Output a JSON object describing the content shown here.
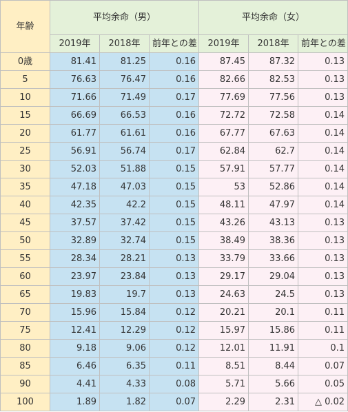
{
  "headers": {
    "age": "年齢",
    "male_group": "平均余命（男）",
    "female_group": "平均余命（女）",
    "col_2019": "2019年",
    "col_2018": "2018年",
    "col_diff": "前年との差"
  },
  "rows": [
    {
      "age": "0歳",
      "m2019": "81.41",
      "m2018": "81.25",
      "mdiff": "0.16",
      "f2019": "87.45",
      "f2018": "87.32",
      "fdiff": "0.13"
    },
    {
      "age": "5",
      "m2019": "76.63",
      "m2018": "76.47",
      "mdiff": "0.16",
      "f2019": "82.66",
      "f2018": "82.53",
      "fdiff": "0.13"
    },
    {
      "age": "10",
      "m2019": "71.66",
      "m2018": "71.49",
      "mdiff": "0.17",
      "f2019": "77.69",
      "f2018": "77.56",
      "fdiff": "0.13"
    },
    {
      "age": "15",
      "m2019": "66.69",
      "m2018": "66.53",
      "mdiff": "0.16",
      "f2019": "72.72",
      "f2018": "72.58",
      "fdiff": "0.14"
    },
    {
      "age": "20",
      "m2019": "61.77",
      "m2018": "61.61",
      "mdiff": "0.16",
      "f2019": "67.77",
      "f2018": "67.63",
      "fdiff": "0.14"
    },
    {
      "age": "25",
      "m2019": "56.91",
      "m2018": "56.74",
      "mdiff": "0.17",
      "f2019": "62.84",
      "f2018": "62.7",
      "fdiff": "0.14"
    },
    {
      "age": "30",
      "m2019": "52.03",
      "m2018": "51.88",
      "mdiff": "0.15",
      "f2019": "57.91",
      "f2018": "57.77",
      "fdiff": "0.14"
    },
    {
      "age": "35",
      "m2019": "47.18",
      "m2018": "47.03",
      "mdiff": "0.15",
      "f2019": "53",
      "f2018": "52.86",
      "fdiff": "0.14"
    },
    {
      "age": "40",
      "m2019": "42.35",
      "m2018": "42.2",
      "mdiff": "0.15",
      "f2019": "48.11",
      "f2018": "47.97",
      "fdiff": "0.14"
    },
    {
      "age": "45",
      "m2019": "37.57",
      "m2018": "37.42",
      "mdiff": "0.15",
      "f2019": "43.26",
      "f2018": "43.13",
      "fdiff": "0.13"
    },
    {
      "age": "50",
      "m2019": "32.89",
      "m2018": "32.74",
      "mdiff": "0.15",
      "f2019": "38.49",
      "f2018": "38.36",
      "fdiff": "0.13"
    },
    {
      "age": "55",
      "m2019": "28.34",
      "m2018": "28.21",
      "mdiff": "0.13",
      "f2019": "33.79",
      "f2018": "33.66",
      "fdiff": "0.13"
    },
    {
      "age": "60",
      "m2019": "23.97",
      "m2018": "23.84",
      "mdiff": "0.13",
      "f2019": "29.17",
      "f2018": "29.04",
      "fdiff": "0.13"
    },
    {
      "age": "65",
      "m2019": "19.83",
      "m2018": "19.7",
      "mdiff": "0.13",
      "f2019": "24.63",
      "f2018": "24.5",
      "fdiff": "0.13"
    },
    {
      "age": "70",
      "m2019": "15.96",
      "m2018": "15.84",
      "mdiff": "0.12",
      "f2019": "20.21",
      "f2018": "20.1",
      "fdiff": "0.11"
    },
    {
      "age": "75",
      "m2019": "12.41",
      "m2018": "12.29",
      "mdiff": "0.12",
      "f2019": "15.97",
      "f2018": "15.86",
      "fdiff": "0.11"
    },
    {
      "age": "80",
      "m2019": "9.18",
      "m2018": "9.06",
      "mdiff": "0.12",
      "f2019": "12.01",
      "f2018": "11.91",
      "fdiff": "0.1"
    },
    {
      "age": "85",
      "m2019": "6.46",
      "m2018": "6.35",
      "mdiff": "0.11",
      "f2019": "8.51",
      "f2018": "8.44",
      "fdiff": "0.07"
    },
    {
      "age": "90",
      "m2019": "4.41",
      "m2018": "4.33",
      "mdiff": "0.08",
      "f2019": "5.71",
      "f2018": "5.66",
      "fdiff": "0.05"
    },
    {
      "age": "100",
      "m2019": "1.89",
      "m2018": "1.82",
      "mdiff": "0.07",
      "f2019": "2.29",
      "f2018": "2.31",
      "fdiff": "△ 0.02"
    }
  ],
  "colors": {
    "age_bg": "#ffefc4",
    "header_bg": "#e4f1d9",
    "male_bg": "#c6e2f2",
    "female_bg": "#fdf0f5",
    "border": "#bfbfbf"
  }
}
